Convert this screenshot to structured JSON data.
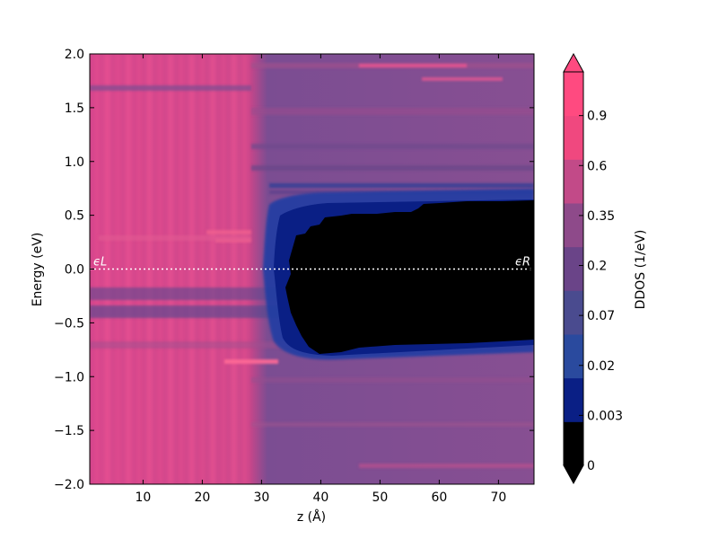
{
  "chart_data": {
    "type": "heatmap",
    "title": "",
    "xlabel": "z (Å)",
    "ylabel": "Energy (eV)",
    "xlim": [
      1,
      76
    ],
    "ylim": [
      -2.0,
      2.0
    ],
    "xticks": [
      10,
      20,
      30,
      40,
      50,
      60,
      70
    ],
    "xtick_labels": [
      "10",
      "20",
      "30",
      "40",
      "50",
      "60",
      "70"
    ],
    "yticks": [
      2.0,
      1.5,
      1.0,
      0.5,
      0.0,
      -0.5,
      -1.0,
      -1.5,
      -2.0
    ],
    "ytick_labels": [
      "2.0",
      "1.5",
      "1.0",
      "0.5",
      "0.0",
      "−0.5",
      "−1.0",
      "−1.5",
      "−2.0"
    ],
    "grid": false,
    "fermi_level": {
      "energy": 0.0,
      "left_label": "ϵL",
      "right_label": "ϵR"
    },
    "colorbar": {
      "label": "DDOS (1/eV)",
      "levels": [
        0,
        0.003,
        0.02,
        0.07,
        0.2,
        0.35,
        0.6,
        0.9
      ],
      "tick_labels": [
        "0",
        "0.003",
        "0.02",
        "0.07",
        "0.2",
        "0.35",
        "0.6",
        "0.9"
      ],
      "extend": "both",
      "colors": [
        "#000000",
        "#0a1f85",
        "#2a4a9e",
        "#4a4b8f",
        "#6a4488",
        "#8e4a8a",
        "#c24a88",
        "#f0487f",
        "#ff4a80"
      ]
    },
    "regions": {
      "gap_region": {
        "z_start": 34,
        "z_end": 76,
        "energy_top": 0.6,
        "energy_bottom": -0.75,
        "color_level": "0"
      },
      "left_electrode": {
        "z_start": 1,
        "z_end": 28,
        "typical_ddos": "0.6-0.9"
      }
    }
  }
}
